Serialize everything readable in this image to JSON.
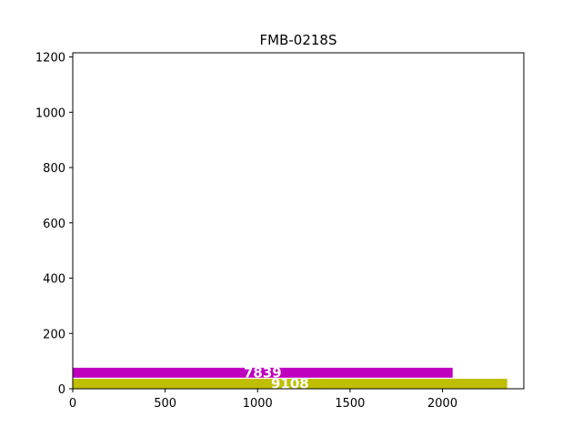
{
  "chart_data": {
    "type": "bar",
    "orientation": "horizontal",
    "title": "FMB-0218S",
    "xlabel": "",
    "ylabel": "",
    "xlim": [
      0,
      2440
    ],
    "ylim": [
      0,
      1215
    ],
    "grid": false,
    "x_ticks": [
      0,
      500,
      1000,
      1500,
      2000
    ],
    "y_ticks": [
      0,
      200,
      400,
      600,
      800,
      1000,
      1200
    ],
    "bars": [
      {
        "value": 2350,
        "y_from": 0,
        "y_to": 36,
        "label": "9108",
        "color": "#bfbf00"
      },
      {
        "value": 2055,
        "y_from": 40,
        "y_to": 76,
        "label": "7839",
        "color": "#bf00bf"
      }
    ]
  }
}
